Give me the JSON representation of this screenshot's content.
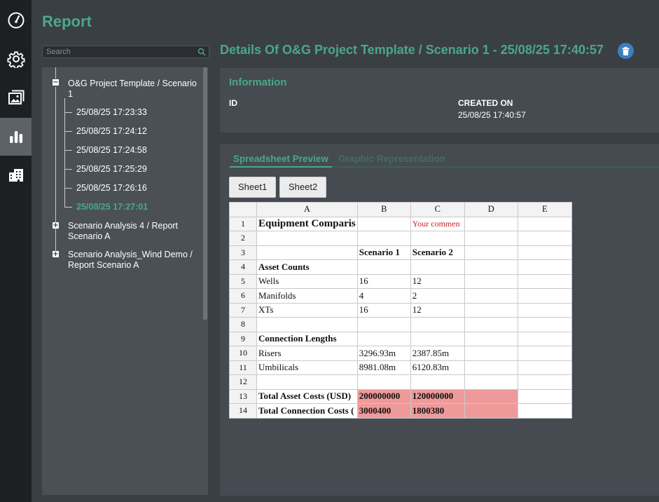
{
  "app": {
    "page_title": "Report"
  },
  "rail": {
    "items": [
      {
        "icon": "speedometer-icon"
      },
      {
        "icon": "gear-icon"
      },
      {
        "icon": "gallery-icon"
      },
      {
        "icon": "bar-chart-icon",
        "active": true
      },
      {
        "icon": "building-icon"
      }
    ]
  },
  "search": {
    "placeholder": "Search"
  },
  "tree": {
    "root": {
      "label_line1": "O&G Project Template / Scenario",
      "label_line2": "1",
      "toggle": "−"
    },
    "children": [
      "25/08/25 17:23:33",
      "25/08/25 17:24:12",
      "25/08/25 17:24:58",
      "25/08/25 17:25:29",
      "25/08/25 17:26:16",
      "25/08/25 17:27:01"
    ],
    "others": [
      {
        "label_line1": "Scenario Analysis 4 / Report",
        "label_line2": "Scenario A",
        "toggle": "+"
      },
      {
        "label_line1": "Scenario Analysis_Wind Demo /",
        "label_line2": "Report Scenario A",
        "toggle": "+"
      }
    ]
  },
  "details": {
    "title": "Details Of O&G Project Template / Scenario 1 - 25/08/25 17:40:57",
    "delete_icon": "trash-icon"
  },
  "information": {
    "heading": "Information",
    "id_label": "ID",
    "id_value": "",
    "created_label": "CREATED ON",
    "created_value": "25/08/25 17:40:57"
  },
  "tabs": {
    "spreadsheet": "Spreadsheet Preview",
    "graphic": "Graphic Representation"
  },
  "sheets": [
    "Sheet1",
    "Sheet2"
  ],
  "spreadsheet": {
    "columns": [
      "A",
      "B",
      "C",
      "D",
      "E"
    ],
    "rows": [
      {
        "n": "1",
        "a": "Equipment Comparis",
        "b": "",
        "c": "Your commen",
        "d": "",
        "e": ""
      },
      {
        "n": "2",
        "a": "",
        "b": "",
        "c": "",
        "d": "",
        "e": ""
      },
      {
        "n": "3",
        "a": "",
        "b": "Scenario 1",
        "c": "Scenario 2",
        "d": "",
        "e": ""
      },
      {
        "n": "4",
        "a": "Asset Counts",
        "b": "",
        "c": "",
        "d": "",
        "e": ""
      },
      {
        "n": "5",
        "a": "Wells",
        "b": "16",
        "c": "12",
        "d": "",
        "e": ""
      },
      {
        "n": "6",
        "a": "Manifolds",
        "b": "4",
        "c": "2",
        "d": "",
        "e": ""
      },
      {
        "n": "7",
        "a": "XTs",
        "b": "16",
        "c": "12",
        "d": "",
        "e": ""
      },
      {
        "n": "8",
        "a": "",
        "b": "",
        "c": "",
        "d": "",
        "e": ""
      },
      {
        "n": "9",
        "a": "Connection Lengths",
        "b": "",
        "c": "",
        "d": "",
        "e": ""
      },
      {
        "n": "10",
        "a": "Risers",
        "b": "3296.93m",
        "c": "2387.85m",
        "d": "",
        "e": ""
      },
      {
        "n": "11",
        "a": "Umbilicals",
        "b": "8981.08m",
        "c": "6120.83m",
        "d": "",
        "e": ""
      },
      {
        "n": "12",
        "a": "",
        "b": "",
        "c": "",
        "d": "",
        "e": ""
      },
      {
        "n": "13",
        "a": "Total Asset Costs (USD)",
        "b": "200000000",
        "c": "120000000",
        "d": "",
        "e": ""
      },
      {
        "n": "14",
        "a": "Total Connection Costs (",
        "b": "3000400",
        "c": "1800380",
        "d": "",
        "e": ""
      }
    ]
  },
  "colors": {
    "accent": "#4aa888",
    "delete_button": "#3c7fc0",
    "highlight_cell": "#ef9a9a",
    "comment_text": "#cc2222"
  }
}
